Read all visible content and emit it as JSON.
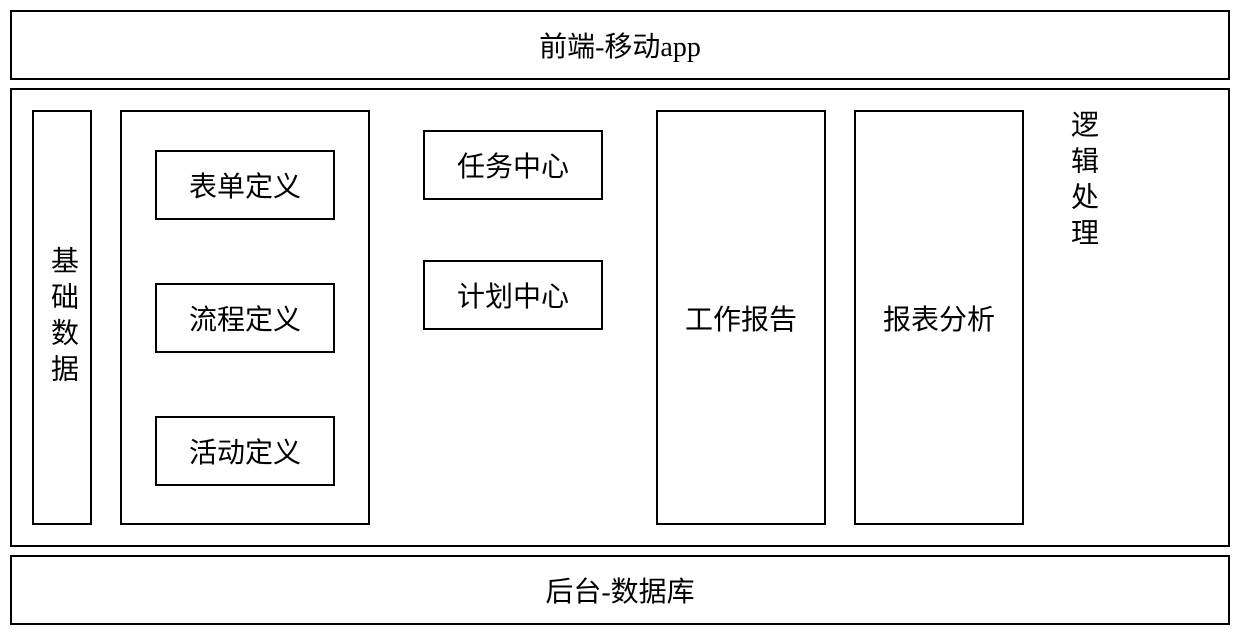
{
  "layout": {
    "top": {
      "label": "前端-移动app"
    },
    "middle": {
      "col1": {
        "label": "基础数据"
      },
      "col2": {
        "items": [
          {
            "label": "表单定义"
          },
          {
            "label": "流程定义"
          },
          {
            "label": "活动定义"
          }
        ]
      },
      "col3": {
        "items": [
          {
            "label": "任务中心"
          },
          {
            "label": "计划中心"
          }
        ]
      },
      "col4": {
        "label": "工作报告"
      },
      "col5": {
        "label": "报表分析"
      },
      "col6": {
        "label": "逻辑处理"
      }
    },
    "bottom": {
      "label": "后台-数据库"
    }
  },
  "style": {
    "border_color": "#000000",
    "border_width": 2,
    "background_color": "#ffffff",
    "text_color": "#000000",
    "font_size_main": 28,
    "font_family": "SimSun"
  }
}
